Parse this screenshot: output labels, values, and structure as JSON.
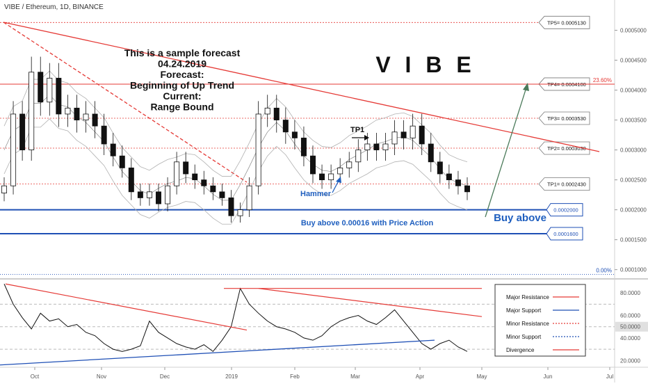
{
  "header": {
    "title": "VIBE / Ethereum, 1D, BINANCE"
  },
  "watermark": "V I B E",
  "annotation": {
    "lines": [
      "This is a sample forecast",
      "04.24.2019",
      "Forecast:",
      "Beginning of Up Trend",
      "Current:",
      "Range Bound"
    ]
  },
  "labels": {
    "hammer": "Hammer",
    "tp1": "TP1",
    "buy_zone": "Buy above 0.00016 with Price Action",
    "buy_above": "Buy above"
  },
  "colors": {
    "candle": "#111111",
    "resistance": "#e53935",
    "support": "#1e4fb5",
    "fib": "#e53935",
    "arrow": "#4a7a5a",
    "bollinger": "#b0b0b0",
    "accent_blue": "#1f5fbf"
  },
  "chart_data": [
    {
      "type": "candlestick",
      "x_axis": {
        "ticks": [
          "Oct",
          "Nov",
          "Dec",
          "2019",
          "Feb",
          "Mar",
          "Apr",
          "May",
          "Jun",
          "Jul"
        ]
      },
      "y_axis": {
        "ticks": [
          "0.0005000",
          "0.0004500",
          "0.0004000",
          "0.0003500",
          "0.0003000",
          "0.0002500",
          "0.0002000",
          "0.0001500",
          "0.0001000"
        ],
        "values": [
          0.0005,
          0.00045,
          0.0004,
          0.00035,
          0.0003,
          0.00025,
          0.0002,
          0.00015,
          0.0001
        ],
        "range": [
          8.8e-05,
          0.000525
        ]
      },
      "target_levels": [
        {
          "label": "TP5= 0.0005130",
          "value": 0.000513
        },
        {
          "label": "TP4= 0.0004100",
          "value": 0.00041
        },
        {
          "label": "TP3= 0.0003530",
          "value": 0.000353
        },
        {
          "label": "TP2= 0.0003030",
          "value": 0.000303
        },
        {
          "label": "TP1= 0.0002430",
          "value": 0.000243
        }
      ],
      "support_levels": [
        {
          "label": "0.0002000",
          "value": 0.0002
        },
        {
          "label": "0.0001600",
          "value": 0.00016
        }
      ],
      "fibonacci": [
        {
          "label": "23.60%",
          "value": 0.00041
        },
        {
          "label": "0.00%",
          "value": 9.2e-05
        }
      ],
      "series_close": [
        0.00024,
        0.00036,
        0.0003,
        0.00043,
        0.00038,
        0.00042,
        0.00036,
        0.00037,
        0.00035,
        0.00036,
        0.00034,
        0.00031,
        0.00029,
        0.00027,
        0.00023,
        0.00022,
        0.00023,
        0.00021,
        0.00024,
        0.00028,
        0.00026,
        0.00025,
        0.00024,
        0.00023,
        0.00022,
        0.00019,
        0.0002,
        0.00024,
        0.00036,
        0.00037,
        0.00035,
        0.00033,
        0.00032,
        0.00029,
        0.00026,
        0.00025,
        0.00026,
        0.00027,
        0.00028,
        0.0003,
        0.00031,
        0.0003,
        0.00031,
        0.00033,
        0.00032,
        0.00034,
        0.00031,
        0.00028,
        0.00026,
        0.00025,
        0.00024,
        0.00023
      ]
    },
    {
      "type": "line",
      "name": "oscillator",
      "y_axis": {
        "ticks": [
          "80.0000",
          "60.0000",
          "50.0000",
          "40.0000",
          "20.0000"
        ],
        "values": [
          80,
          60,
          50,
          40,
          20
        ],
        "range": [
          14,
          90
        ],
        "highlight": "50.0000"
      },
      "values": [
        88,
        70,
        58,
        48,
        62,
        55,
        57,
        50,
        52,
        45,
        42,
        35,
        30,
        28,
        30,
        33,
        55,
        45,
        40,
        35,
        32,
        30,
        34,
        28,
        38,
        50,
        84,
        70,
        62,
        55,
        50,
        48,
        45,
        40,
        38,
        42,
        50,
        55,
        58,
        60,
        55,
        52,
        58,
        65,
        55,
        45,
        35,
        30,
        35,
        38,
        32,
        28
      ],
      "legend": [
        {
          "label": "Major Resistance",
          "style": "solid",
          "color": "#e53935"
        },
        {
          "label": "Major Support",
          "style": "solid",
          "color": "#1e4fb5"
        },
        {
          "label": "Minor Resistance",
          "style": "dotted",
          "color": "#e53935"
        },
        {
          "label": "Minor Support",
          "style": "dotted",
          "color": "#1e4fb5"
        },
        {
          "label": "Divergence",
          "style": "solid",
          "color": "#e53935"
        }
      ]
    }
  ]
}
